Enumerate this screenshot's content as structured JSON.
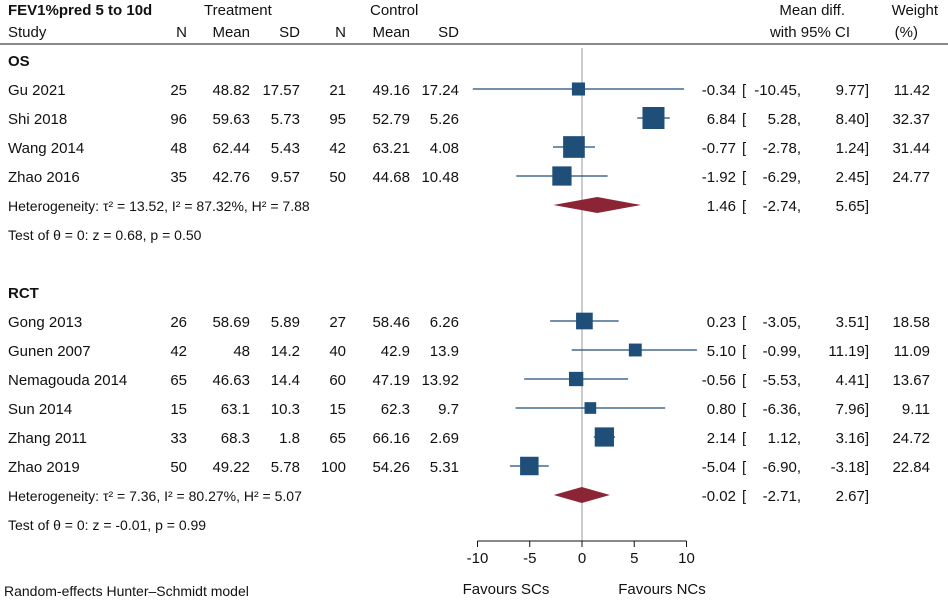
{
  "chart_data": {
    "type": "forest",
    "title": "FEV1%pred 5 to 10d",
    "header": {
      "study": "Study",
      "treatment": "Treatment",
      "control": "Control",
      "n": "N",
      "mean": "Mean",
      "sd": "SD",
      "effect_line1": "Mean diff.",
      "effect_line2": "with 95% CI",
      "weight_line1": "Weight",
      "weight_line2": "(%)"
    },
    "groups": [
      {
        "name": "OS",
        "studies": [
          {
            "study": "Gu 2021",
            "t_n": "25",
            "t_mean": "48.82",
            "t_sd": "17.57",
            "c_n": "21",
            "c_mean": "49.16",
            "c_sd": "17.24",
            "md": -0.34,
            "lo": -10.45,
            "hi": 9.77,
            "md_label": "-0.34",
            "lo_label": "-10.45,",
            "hi_label": "9.77]",
            "weight": 11.42,
            "weight_label": "11.42"
          },
          {
            "study": "Shi 2018",
            "t_n": "96",
            "t_mean": "59.63",
            "t_sd": "5.73",
            "c_n": "95",
            "c_mean": "52.79",
            "c_sd": "5.26",
            "md": 6.84,
            "lo": 5.28,
            "hi": 8.4,
            "md_label": "6.84",
            "lo_label": "5.28,",
            "hi_label": "8.40]",
            "weight": 32.37,
            "weight_label": "32.37"
          },
          {
            "study": "Wang 2014",
            "t_n": "48",
            "t_mean": "62.44",
            "t_sd": "5.43",
            "c_n": "42",
            "c_mean": "63.21",
            "c_sd": "4.08",
            "md": -0.77,
            "lo": -2.78,
            "hi": 1.24,
            "md_label": "-0.77",
            "lo_label": "-2.78,",
            "hi_label": "1.24]",
            "weight": 31.44,
            "weight_label": "31.44"
          },
          {
            "study": "Zhao 2016",
            "t_n": "35",
            "t_mean": "42.76",
            "t_sd": "9.57",
            "c_n": "50",
            "c_mean": "44.68",
            "c_sd": "10.48",
            "md": -1.92,
            "lo": -6.29,
            "hi": 2.45,
            "md_label": "-1.92",
            "lo_label": "-6.29,",
            "hi_label": "2.45]",
            "weight": 24.77,
            "weight_label": "24.77"
          }
        ],
        "heterogeneity": "Heterogeneity: τ² = 13.52, I² = 87.32%, H² = 7.88",
        "pooled": {
          "md": 1.46,
          "lo": -2.74,
          "hi": 5.65,
          "md_label": "1.46",
          "lo_label": "-2.74,",
          "hi_label": "5.65]"
        },
        "test": "Test of θ = 0: z = 0.68, p = 0.50"
      },
      {
        "name": "RCT",
        "studies": [
          {
            "study": "Gong 2013",
            "t_n": "26",
            "t_mean": "58.69",
            "t_sd": "5.89",
            "c_n": "27",
            "c_mean": "58.46",
            "c_sd": "6.26",
            "md": 0.23,
            "lo": -3.05,
            "hi": 3.51,
            "md_label": "0.23",
            "lo_label": "-3.05,",
            "hi_label": "3.51]",
            "weight": 18.58,
            "weight_label": "18.58"
          },
          {
            "study": "Gunen 2007",
            "t_n": "42",
            "t_mean": "48",
            "t_sd": "14.2",
            "c_n": "40",
            "c_mean": "42.9",
            "c_sd": "13.9",
            "md": 5.1,
            "lo": -0.99,
            "hi": 11.19,
            "md_label": "5.10",
            "lo_label": "-0.99,",
            "hi_label": "11.19]",
            "weight": 11.09,
            "weight_label": "11.09"
          },
          {
            "study": "Nemagouda 2014",
            "t_n": "65",
            "t_mean": "46.63",
            "t_sd": "14.4",
            "c_n": "60",
            "c_mean": "47.19",
            "c_sd": "13.92",
            "md": -0.56,
            "lo": -5.53,
            "hi": 4.41,
            "md_label": "-0.56",
            "lo_label": "-5.53,",
            "hi_label": "4.41]",
            "weight": 13.67,
            "weight_label": "13.67"
          },
          {
            "study": "Sun 2014",
            "t_n": "15",
            "t_mean": "63.1",
            "t_sd": "10.3",
            "c_n": "15",
            "c_mean": "62.3",
            "c_sd": "9.7",
            "md": 0.8,
            "lo": -6.36,
            "hi": 7.96,
            "md_label": "0.80",
            "lo_label": "-6.36,",
            "hi_label": "7.96]",
            "weight": 9.11,
            "weight_label": "9.11"
          },
          {
            "study": "Zhang 2011",
            "t_n": "33",
            "t_mean": "68.3",
            "t_sd": "1.8",
            "c_n": "65",
            "c_mean": "66.16",
            "c_sd": "2.69",
            "md": 2.14,
            "lo": 1.12,
            "hi": 3.16,
            "md_label": "2.14",
            "lo_label": "1.12,",
            "hi_label": "3.16]",
            "weight": 24.72,
            "weight_label": "24.72"
          },
          {
            "study": "Zhao 2019",
            "t_n": "50",
            "t_mean": "49.22",
            "t_sd": "5.78",
            "c_n": "100",
            "c_mean": "54.26",
            "c_sd": "5.31",
            "md": -5.04,
            "lo": -6.9,
            "hi": -3.18,
            "md_label": "-5.04",
            "lo_label": "-6.90,",
            "hi_label": "-3.18]",
            "weight": 22.84,
            "weight_label": "22.84"
          }
        ],
        "heterogeneity": "Heterogeneity: τ² = 7.36, I² = 80.27%, H² = 5.07",
        "pooled": {
          "md": -0.02,
          "lo": -2.71,
          "hi": 2.67,
          "md_label": "-0.02",
          "lo_label": "-2.71,",
          "hi_label": "2.67]"
        },
        "test": "Test of θ = 0: z = -0.01, p = 0.99"
      }
    ],
    "x_axis": {
      "range": [
        -11,
        11
      ],
      "ticks": [
        -10,
        -5,
        0,
        5,
        10
      ],
      "tick_labels": [
        "-10",
        "-5",
        "0",
        "5",
        "10"
      ],
      "null_line": 0
    },
    "favours_left": "Favours SCs",
    "favours_right": "Favours NCs",
    "footnote": "Random-effects Hunter–Schmidt model",
    "colors": {
      "marker": "#1f4e79",
      "diamond": "#8b2535",
      "ci_line": "#1f4e79",
      "null_line": "#999999",
      "text": "#111111"
    }
  }
}
